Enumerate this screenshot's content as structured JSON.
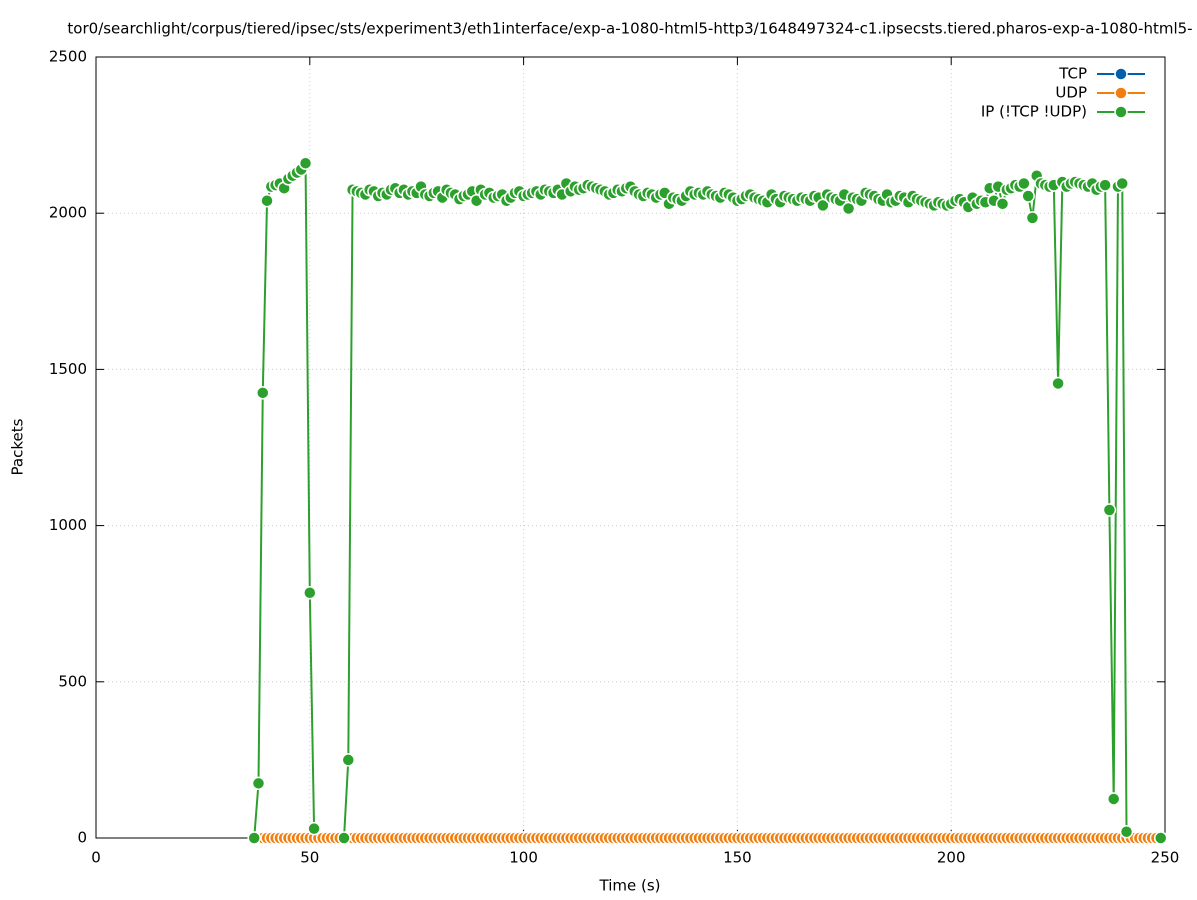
{
  "chart_data": {
    "type": "line",
    "title": "tor0/searchlight/corpus/tiered/ipsec/sts/experiment3/eth1interface/exp-a-1080-html5-http3/1648497324-c1.ipsecsts.tiered.pharos-exp-a-1080-html5-",
    "xlabel": "Time (s)",
    "ylabel": "Packets",
    "xlim": [
      0,
      250
    ],
    "xticks": [
      0,
      50,
      100,
      150,
      200,
      250
    ],
    "ylim": [
      0,
      2500
    ],
    "yticks": [
      0,
      500,
      1000,
      1500,
      2000,
      2500
    ],
    "grid": true,
    "legend": "upper right",
    "x": [
      37,
      38,
      39,
      40,
      41,
      42,
      43,
      44,
      45,
      46,
      47,
      48,
      49,
      50,
      51,
      52,
      53,
      54,
      55,
      56,
      57,
      58,
      59,
      60,
      61,
      62,
      63,
      64,
      65,
      66,
      67,
      68,
      69,
      70,
      71,
      72,
      73,
      74,
      75,
      76,
      77,
      78,
      79,
      80,
      81,
      82,
      83,
      84,
      85,
      86,
      87,
      88,
      89,
      90,
      91,
      92,
      93,
      94,
      95,
      96,
      97,
      98,
      99,
      100,
      101,
      102,
      103,
      104,
      105,
      106,
      107,
      108,
      109,
      110,
      111,
      112,
      113,
      114,
      115,
      116,
      117,
      118,
      119,
      120,
      121,
      122,
      123,
      124,
      125,
      126,
      127,
      128,
      129,
      130,
      131,
      132,
      133,
      134,
      135,
      136,
      137,
      138,
      139,
      140,
      141,
      142,
      143,
      144,
      145,
      146,
      147,
      148,
      149,
      150,
      151,
      152,
      153,
      154,
      155,
      156,
      157,
      158,
      159,
      160,
      161,
      162,
      163,
      164,
      165,
      166,
      167,
      168,
      169,
      170,
      171,
      172,
      173,
      174,
      175,
      176,
      177,
      178,
      179,
      180,
      181,
      182,
      183,
      184,
      185,
      186,
      187,
      188,
      189,
      190,
      191,
      192,
      193,
      194,
      195,
      196,
      197,
      198,
      199,
      200,
      201,
      202,
      203,
      204,
      205,
      206,
      207,
      208,
      209,
      210,
      211,
      212,
      213,
      214,
      215,
      216,
      217,
      218,
      219,
      220,
      221,
      222,
      223,
      224,
      225,
      226,
      227,
      228,
      229,
      230,
      231,
      232,
      233,
      234,
      235,
      236,
      237,
      238,
      239,
      240,
      241,
      242,
      243,
      244,
      245,
      246,
      247,
      248,
      249
    ],
    "series": [
      {
        "name": "TCP",
        "color": "#0060ad",
        "values": [
          0,
          0,
          0,
          0,
          0,
          0,
          0,
          0,
          0,
          0,
          0,
          0,
          0,
          0,
          0,
          0,
          0,
          0,
          0,
          0,
          0,
          0,
          0,
          0,
          0,
          0,
          0,
          0,
          0,
          0,
          0,
          0,
          0,
          0,
          0,
          0,
          0,
          0,
          0,
          0,
          0,
          0,
          0,
          0,
          0,
          0,
          0,
          0,
          0,
          0,
          0,
          0,
          0,
          0,
          0,
          0,
          0,
          0,
          0,
          0,
          0,
          0,
          0,
          0,
          0,
          0,
          0,
          0,
          0,
          0,
          0,
          0,
          0,
          0,
          0,
          0,
          0,
          0,
          0,
          0,
          0,
          0,
          0,
          0,
          0,
          0,
          0,
          0,
          0,
          0,
          0,
          0,
          0,
          0,
          0,
          0,
          0,
          0,
          0,
          0,
          0,
          0,
          0,
          0,
          0,
          0,
          0,
          0,
          0,
          0,
          0,
          0,
          0,
          0,
          0,
          0,
          0,
          0,
          0,
          0,
          0,
          0,
          0,
          0,
          0,
          0,
          0,
          0,
          0,
          0,
          0,
          0,
          0,
          0,
          0,
          0,
          0,
          0,
          0,
          0,
          0,
          0,
          0,
          0,
          0,
          0,
          0,
          0,
          0,
          0,
          0,
          0,
          0,
          0,
          0,
          0,
          0,
          0,
          0,
          0,
          0,
          0,
          0,
          0,
          0,
          0,
          0,
          0,
          0,
          0,
          0,
          0,
          0,
          0,
          0,
          0,
          0,
          0,
          0,
          0,
          0,
          0,
          0,
          0,
          0,
          0,
          0,
          0,
          0,
          0,
          0,
          0,
          0,
          0,
          0,
          0,
          0,
          0,
          0,
          0,
          0,
          0,
          0,
          0,
          0,
          0,
          0,
          0,
          0,
          0,
          0,
          0,
          0
        ]
      },
      {
        "name": "UDP",
        "color": "#f07f10",
        "values": [
          0,
          0,
          0,
          0,
          0,
          0,
          0,
          0,
          0,
          0,
          0,
          0,
          0,
          0,
          0,
          0,
          0,
          0,
          0,
          0,
          0,
          0,
          0,
          0,
          0,
          0,
          0,
          0,
          0,
          0,
          0,
          0,
          0,
          0,
          0,
          0,
          0,
          0,
          0,
          0,
          0,
          0,
          0,
          0,
          0,
          0,
          0,
          0,
          0,
          0,
          0,
          0,
          0,
          0,
          0,
          0,
          0,
          0,
          0,
          0,
          0,
          0,
          0,
          0,
          0,
          0,
          0,
          0,
          0,
          0,
          0,
          0,
          0,
          0,
          0,
          0,
          0,
          0,
          0,
          0,
          0,
          0,
          0,
          0,
          0,
          0,
          0,
          0,
          0,
          0,
          0,
          0,
          0,
          0,
          0,
          0,
          0,
          0,
          0,
          0,
          0,
          0,
          0,
          0,
          0,
          0,
          0,
          0,
          0,
          0,
          0,
          0,
          0,
          0,
          0,
          0,
          0,
          0,
          0,
          0,
          0,
          0,
          0,
          0,
          0,
          0,
          0,
          0,
          0,
          0,
          0,
          0,
          0,
          0,
          0,
          0,
          0,
          0,
          0,
          0,
          0,
          0,
          0,
          0,
          0,
          0,
          0,
          0,
          0,
          0,
          0,
          0,
          0,
          0,
          0,
          0,
          0,
          0,
          0,
          0,
          0,
          0,
          0,
          0,
          0,
          0,
          0,
          0,
          0,
          0,
          0,
          0,
          0,
          0,
          0,
          0,
          0,
          0,
          0,
          0,
          0,
          0,
          0,
          0,
          0,
          0,
          0,
          0,
          0,
          0,
          0,
          0,
          0,
          0,
          0,
          0,
          0,
          0,
          0,
          0,
          0,
          0,
          0,
          0,
          0,
          0,
          0,
          0,
          0,
          0,
          0,
          0,
          0
        ]
      },
      {
        "name": "IP (!TCP  !UDP)",
        "color": "#2ca02c",
        "values": [
          0,
          175,
          1425,
          2040,
          2085,
          2090,
          2095,
          2080,
          2110,
          2120,
          2130,
          2140,
          2160,
          785,
          30,
          null,
          null,
          null,
          null,
          null,
          null,
          0,
          250,
          2075,
          2070,
          2065,
          2060,
          2075,
          2070,
          2055,
          2065,
          2060,
          2075,
          2080,
          2065,
          2075,
          2060,
          2070,
          2065,
          2085,
          2060,
          2055,
          2065,
          2070,
          2050,
          2075,
          2065,
          2060,
          2045,
          2055,
          2060,
          2070,
          2040,
          2075,
          2060,
          2065,
          2050,
          2055,
          2060,
          2040,
          2050,
          2065,
          2070,
          2055,
          2060,
          2065,
          2070,
          2060,
          2075,
          2070,
          2065,
          2075,
          2060,
          2095,
          2070,
          2085,
          2075,
          2080,
          2090,
          2085,
          2080,
          2075,
          2070,
          2060,
          2065,
          2075,
          2070,
          2080,
          2085,
          2070,
          2060,
          2055,
          2065,
          2060,
          2050,
          2060,
          2065,
          2030,
          2050,
          2045,
          2040,
          2055,
          2070,
          2060,
          2065,
          2060,
          2070,
          2060,
          2055,
          2050,
          2065,
          2060,
          2050,
          2040,
          2045,
          2055,
          2060,
          2050,
          2045,
          2040,
          2035,
          2060,
          2045,
          2035,
          2055,
          2050,
          2045,
          2040,
          2050,
          2045,
          2040,
          2055,
          2050,
          2025,
          2060,
          2050,
          2045,
          2040,
          2060,
          2015,
          2050,
          2045,
          2040,
          2065,
          2060,
          2055,
          2045,
          2040,
          2060,
          2035,
          2040,
          2055,
          2050,
          2035,
          2055,
          2045,
          2040,
          2035,
          2030,
          2025,
          2035,
          2030,
          2025,
          2030,
          2040,
          2045,
          2035,
          2020,
          2050,
          2030,
          2040,
          2035,
          2080,
          2040,
          2085,
          2030,
          2075,
          2080,
          2090,
          2085,
          2095,
          2055,
          1985,
          2120,
          2095,
          2090,
          2085,
          2090,
          1455,
          2100,
          2085,
          2095,
          2100,
          2095,
          2090,
          2085,
          2095,
          2075,
          2085,
          2090,
          1050,
          125,
          2085,
          2095,
          20,
          null,
          null,
          null,
          null,
          null,
          null,
          null,
          0
        ]
      }
    ]
  }
}
